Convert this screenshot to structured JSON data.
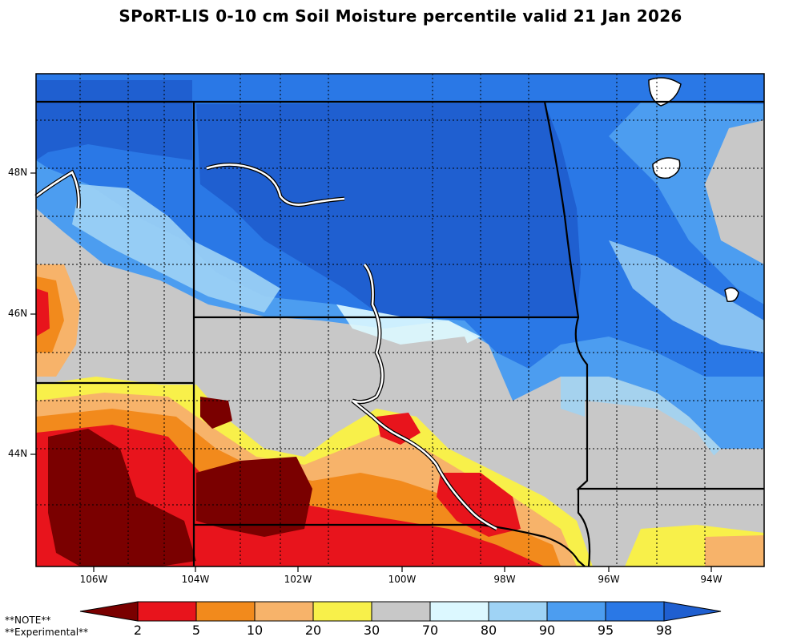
{
  "title": "SPoRT-LIS 0-10 cm Soil Moisture percentile valid 21 Jan 2026",
  "map": {
    "lat_labels": [
      "48N",
      "46N",
      "44N"
    ],
    "lon_labels": [
      "106W",
      "104W",
      "102W",
      "100W",
      "98W",
      "96W",
      "94W"
    ]
  },
  "colorbar": {
    "labels": [
      "2",
      "5",
      "10",
      "20",
      "30",
      "70",
      "80",
      "90",
      "95",
      "98"
    ],
    "colors": {
      "below_2": "#7a0000",
      "2_5": "#e8141c",
      "5_10": "#f28a1c",
      "10_20": "#f7b36a",
      "20_30": "#f8f04a",
      "30_70": "#c8c8c8",
      "70_80": "#dcf8ff",
      "80_90": "#9fd3f5",
      "90_95": "#4c9df0",
      "95_98": "#2a78e6",
      "above_98": "#1f5fd0"
    }
  },
  "notes": [
    "**NOTE**",
    "**Experimental**"
  ]
}
